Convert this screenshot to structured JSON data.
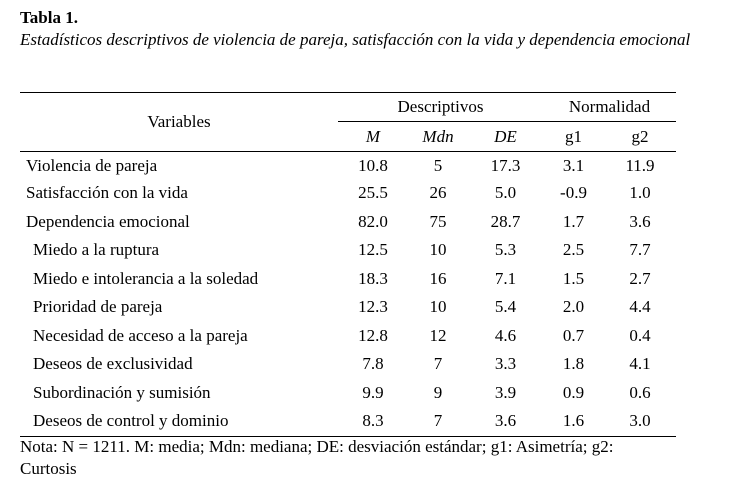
{
  "table": {
    "label": "Tabla 1.",
    "caption": "Estadísticos descriptivos de violencia de pareja, satisfacción con la vida y dependencia emocional",
    "headers": {
      "variables": "Variables",
      "group_descriptivos": "Descriptivos",
      "group_normalidad": "Normalidad",
      "m": "M",
      "mdn": "Mdn",
      "de": "DE",
      "g1": "g1",
      "g2": "g2"
    },
    "rows": [
      {
        "variable": "Violencia de pareja",
        "m": "10.8",
        "mdn": "5",
        "de": "17.3",
        "g1": "3.1",
        "g2": "11.9"
      },
      {
        "variable": "Satisfacción con la vida",
        "m": "25.5",
        "mdn": "26",
        "de": "5.0",
        "g1": "-0.9",
        "g2": "1.0"
      },
      {
        "variable": "Dependencia emocional",
        "m": "82.0",
        "mdn": "75",
        "de": "28.7",
        "g1": "1.7",
        "g2": "3.6"
      },
      {
        "variable": "Miedo a la ruptura",
        "m": "12.5",
        "mdn": "10",
        "de": "5.3",
        "g1": "2.5",
        "g2": "7.7"
      },
      {
        "variable": "Miedo e intolerancia a la soledad",
        "m": "18.3",
        "mdn": "16",
        "de": "7.1",
        "g1": "1.5",
        "g2": "2.7"
      },
      {
        "variable": "Prioridad de pareja",
        "m": "12.3",
        "mdn": "10",
        "de": "5.4",
        "g1": "2.0",
        "g2": "4.4"
      },
      {
        "variable": "Necesidad de acceso a la pareja",
        "m": "12.8",
        "mdn": "12",
        "de": "4.6",
        "g1": "0.7",
        "g2": "0.4"
      },
      {
        "variable": "Deseos de exclusividad",
        "m": "7.8",
        "mdn": "7",
        "de": "3.3",
        "g1": "1.8",
        "g2": "4.1"
      },
      {
        "variable": "Subordinación y sumisión",
        "m": "9.9",
        "mdn": "9",
        "de": "3.9",
        "g1": "0.9",
        "g2": "0.6"
      },
      {
        "variable": "Deseos de control y dominio",
        "m": "8.3",
        "mdn": "7",
        "de": "3.6",
        "g1": "1.6",
        "g2": "3.0"
      }
    ],
    "note": "Nota: N = 1211. M: media; Mdn: mediana; DE: desviación estándar; g1: Asimetría; g2: Curtosis"
  }
}
